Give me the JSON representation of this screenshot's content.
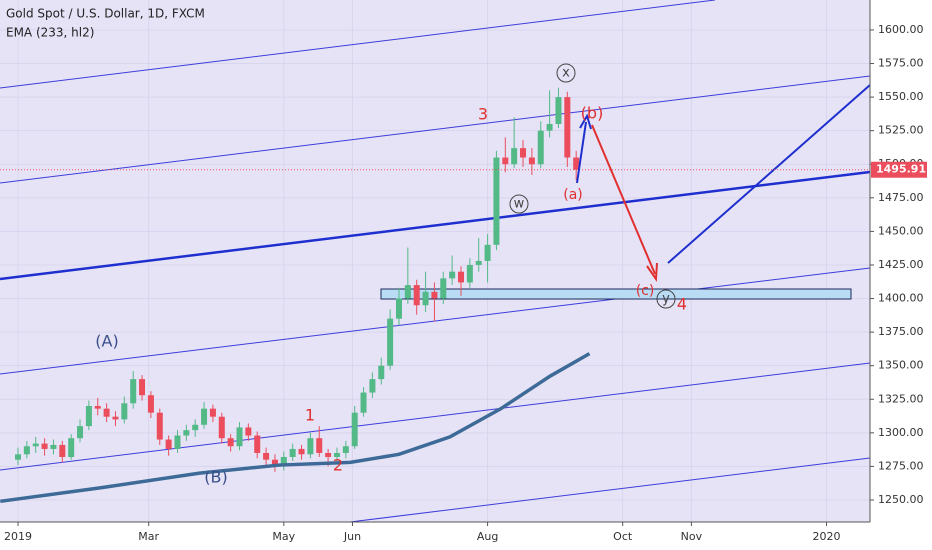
{
  "chart_data": {
    "type": "candlestick",
    "title": "Gold Spot / U.S. Dollar, 1D, FXCM",
    "up_color": "#53b987",
    "down_color": "#eb4d5c",
    "xlim": [
      -8.13,
      384.65
    ],
    "ylim": [
      1233.6,
      1622.3
    ],
    "xticks": [
      {
        "value": 0,
        "label": "2019"
      },
      {
        "value": 59,
        "label": "Mar"
      },
      {
        "value": 120,
        "label": "May"
      },
      {
        "value": 151,
        "label": "Jun"
      },
      {
        "value": 212,
        "label": "Aug"
      },
      {
        "value": 273,
        "label": "Oct"
      },
      {
        "value": 304,
        "label": "Nov"
      },
      {
        "value": 365,
        "label": "2020"
      }
    ],
    "yticks": [
      {
        "value": 1250,
        "label": "1250.00"
      },
      {
        "value": 1275,
        "label": "1275.00"
      },
      {
        "value": 1300,
        "label": "1300.00"
      },
      {
        "value": 1325,
        "label": "1325.00"
      },
      {
        "value": 1350,
        "label": "1350.00"
      },
      {
        "value": 1375,
        "label": "1375.00"
      },
      {
        "value": 1400,
        "label": "1400.00"
      },
      {
        "value": 1425,
        "label": "1425.00"
      },
      {
        "value": 1450,
        "label": "1450.00"
      },
      {
        "value": 1475,
        "label": "1475.00"
      },
      {
        "value": 1500,
        "label": "1500.00"
      },
      {
        "value": 1525,
        "label": "1525.00"
      },
      {
        "value": 1550,
        "label": "1550.00"
      },
      {
        "value": 1575,
        "label": "1575.00"
      },
      {
        "value": 1600,
        "label": "1600.00"
      }
    ],
    "grid": true,
    "x": [
      0,
      4,
      8,
      12,
      16,
      20,
      24,
      28,
      32,
      36,
      40,
      44,
      48,
      52,
      56,
      60,
      64,
      68,
      72,
      76,
      80,
      84,
      88,
      92,
      96,
      100,
      104,
      108,
      112,
      116,
      120,
      124,
      128,
      132,
      136,
      140,
      144,
      148,
      152,
      156,
      160,
      164,
      168,
      172,
      176,
      180,
      184,
      188,
      192,
      196,
      200,
      204,
      208,
      212,
      216,
      220,
      224,
      228,
      232,
      236,
      240,
      244,
      248,
      252
    ],
    "open": [
      1280,
      1284,
      1290,
      1292,
      1288,
      1291,
      1282,
      1296,
      1305,
      1320,
      1318,
      1312,
      1310,
      1322,
      1340,
      1328,
      1315,
      1295,
      1288,
      1298,
      1302,
      1306,
      1318,
      1312,
      1296,
      1290,
      1304,
      1298,
      1285,
      1280,
      1276,
      1282,
      1288,
      1284,
      1296,
      1285,
      1282,
      1285,
      1290,
      1315,
      1330,
      1340,
      1350,
      1385,
      1400,
      1410,
      1395,
      1405,
      1400,
      1415,
      1420,
      1412,
      1425,
      1428,
      1440,
      1505,
      1500,
      1512,
      1505,
      1500,
      1525,
      1530,
      1550,
      1505
    ],
    "high": [
      1289,
      1294,
      1297,
      1296,
      1295,
      1294,
      1299,
      1310,
      1324,
      1326,
      1322,
      1316,
      1327,
      1346,
      1343,
      1331,
      1318,
      1298,
      1302,
      1306,
      1310,
      1323,
      1321,
      1315,
      1299,
      1308,
      1307,
      1301,
      1289,
      1284,
      1286,
      1292,
      1291,
      1300,
      1305,
      1288,
      1289,
      1294,
      1320,
      1334,
      1345,
      1356,
      1392,
      1408,
      1438,
      1414,
      1420,
      1412,
      1420,
      1432,
      1424,
      1430,
      1445,
      1448,
      1510,
      1520,
      1535,
      1518,
      1512,
      1532,
      1555,
      1557,
      1554,
      1510
    ],
    "low": [
      1276,
      1281,
      1285,
      1283,
      1284,
      1278,
      1280,
      1293,
      1302,
      1313,
      1308,
      1305,
      1307,
      1318,
      1324,
      1311,
      1291,
      1283,
      1285,
      1294,
      1297,
      1303,
      1308,
      1292,
      1286,
      1287,
      1294,
      1281,
      1276,
      1271,
      1272,
      1279,
      1280,
      1281,
      1282,
      1275,
      1279,
      1281,
      1288,
      1312,
      1326,
      1336,
      1347,
      1380,
      1396,
      1388,
      1390,
      1383,
      1396,
      1410,
      1402,
      1408,
      1420,
      1412,
      1436,
      1494,
      1497,
      1498,
      1492,
      1497,
      1520,
      1527,
      1498,
      1488
    ],
    "close": [
      1284,
      1290,
      1292,
      1288,
      1291,
      1282,
      1296,
      1305,
      1320,
      1318,
      1312,
      1310,
      1322,
      1340,
      1328,
      1315,
      1295,
      1288,
      1298,
      1302,
      1306,
      1318,
      1312,
      1296,
      1290,
      1304,
      1298,
      1285,
      1280,
      1276,
      1282,
      1288,
      1284,
      1296,
      1285,
      1282,
      1285,
      1290,
      1315,
      1330,
      1340,
      1350,
      1385,
      1400,
      1410,
      1395,
      1405,
      1400,
      1415,
      1420,
      1412,
      1425,
      1428,
      1440,
      1505,
      1500,
      1512,
      1505,
      1500,
      1525,
      1530,
      1550,
      1505,
      1495.91
    ],
    "ema": {
      "name": "EMA (233, hl2)",
      "color": "#3d6a96",
      "x": [
        -8,
        37,
        82,
        118,
        150,
        172,
        195,
        218,
        240,
        258
      ],
      "values": [
        1249,
        1259,
        1270,
        1276,
        1278,
        1284,
        1297,
        1318,
        1342,
        1359
      ]
    },
    "annotations": [
      "3",
      "(b)",
      "x",
      "(a)",
      "w",
      "(c)",
      "y",
      "4",
      "(A)",
      "(B)",
      "1",
      "2"
    ]
  }
}
